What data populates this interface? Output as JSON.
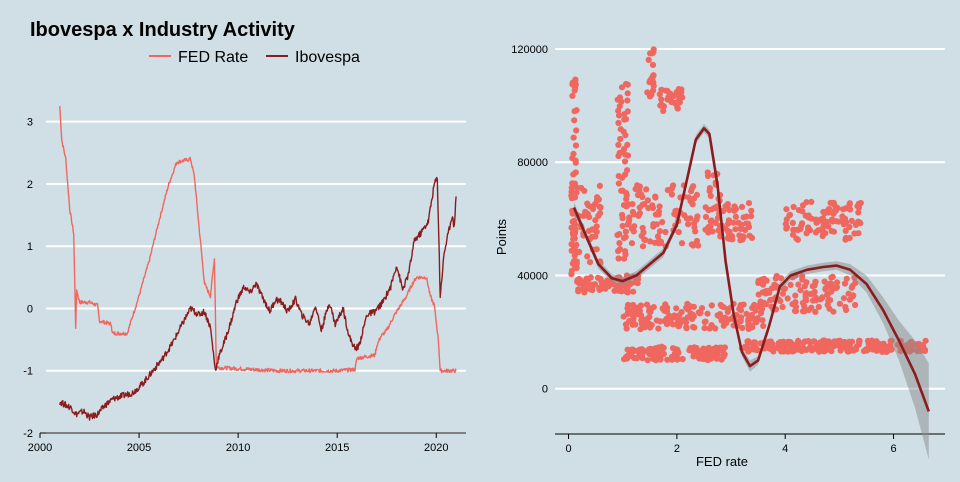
{
  "chart_data": [
    {
      "type": "line",
      "title": "Ibovespa x Industry Activity",
      "xlabel": "",
      "ylabel": "",
      "xlim": [
        2000,
        2021.5
      ],
      "ylim": [
        -2,
        3.3
      ],
      "x_ticks": [
        "2000",
        "2005",
        "2010",
        "2015",
        "2020"
      ],
      "y_ticks": [
        "-2",
        "-1",
        "0",
        "1",
        "2",
        "3"
      ],
      "grid": "horizontal",
      "legend": {
        "placement": "top",
        "entries": [
          "FED Rate",
          "Ibovespa"
        ]
      },
      "series": [
        {
          "name": "FED Rate",
          "color": "#f0675f",
          "points": [
            [
              2001.0,
              3.25
            ],
            [
              2001.1,
              2.7
            ],
            [
              2001.3,
              2.4
            ],
            [
              2001.5,
              1.6
            ],
            [
              2001.7,
              1.2
            ],
            [
              2001.8,
              -0.3
            ],
            [
              2001.85,
              0.3
            ],
            [
              2002.0,
              0.1
            ],
            [
              2002.5,
              0.1
            ],
            [
              2002.9,
              0.05
            ],
            [
              2003.0,
              -0.2
            ],
            [
              2003.6,
              -0.25
            ],
            [
              2003.65,
              -0.4
            ],
            [
              2004.4,
              -0.4
            ],
            [
              2004.5,
              -0.3
            ],
            [
              2004.9,
              0.1
            ],
            [
              2005.5,
              0.75
            ],
            [
              2006.0,
              1.4
            ],
            [
              2006.5,
              2.0
            ],
            [
              2006.9,
              2.35
            ],
            [
              2007.6,
              2.4
            ],
            [
              2007.8,
              2.1
            ],
            [
              2008.0,
              1.4
            ],
            [
              2008.3,
              0.4
            ],
            [
              2008.6,
              0.2
            ],
            [
              2008.8,
              0.8
            ],
            [
              2008.9,
              -0.9
            ],
            [
              2009.0,
              -0.95
            ],
            [
              2012.0,
              -1.0
            ],
            [
              2015.0,
              -1.0
            ],
            [
              2015.9,
              -0.98
            ],
            [
              2016.0,
              -0.8
            ],
            [
              2016.9,
              -0.75
            ],
            [
              2017.0,
              -0.6
            ],
            [
              2017.2,
              -0.45
            ],
            [
              2017.5,
              -0.35
            ],
            [
              2017.9,
              -0.1
            ],
            [
              2018.2,
              0.05
            ],
            [
              2018.5,
              0.2
            ],
            [
              2018.8,
              0.4
            ],
            [
              2019.0,
              0.5
            ],
            [
              2019.5,
              0.5
            ],
            [
              2019.7,
              0.2
            ],
            [
              2019.9,
              0.05
            ],
            [
              2020.1,
              -0.5
            ],
            [
              2020.2,
              -1.0
            ],
            [
              2021.0,
              -1.0
            ]
          ]
        },
        {
          "name": "Ibovespa",
          "color": "#8b1c1e",
          "points": [
            [
              2001.0,
              -1.5
            ],
            [
              2001.3,
              -1.55
            ],
            [
              2001.6,
              -1.6
            ],
            [
              2001.8,
              -1.7
            ],
            [
              2002.2,
              -1.65
            ],
            [
              2002.5,
              -1.75
            ],
            [
              2002.9,
              -1.7
            ],
            [
              2003.3,
              -1.55
            ],
            [
              2003.7,
              -1.45
            ],
            [
              2004.2,
              -1.4
            ],
            [
              2004.7,
              -1.35
            ],
            [
              2005.2,
              -1.2
            ],
            [
              2005.7,
              -1.0
            ],
            [
              2006.2,
              -0.8
            ],
            [
              2006.7,
              -0.55
            ],
            [
              2007.1,
              -0.3
            ],
            [
              2007.6,
              0.0
            ],
            [
              2008.0,
              -0.1
            ],
            [
              2008.3,
              -0.05
            ],
            [
              2008.6,
              -0.3
            ],
            [
              2008.85,
              -1.0
            ],
            [
              2009.0,
              -0.8
            ],
            [
              2009.4,
              -0.45
            ],
            [
              2009.7,
              -0.15
            ],
            [
              2009.9,
              0.1
            ],
            [
              2010.3,
              0.35
            ],
            [
              2010.6,
              0.25
            ],
            [
              2010.9,
              0.4
            ],
            [
              2011.2,
              0.2
            ],
            [
              2011.6,
              -0.05
            ],
            [
              2011.9,
              0.15
            ],
            [
              2012.2,
              0.1
            ],
            [
              2012.5,
              -0.05
            ],
            [
              2012.9,
              0.15
            ],
            [
              2013.2,
              -0.1
            ],
            [
              2013.6,
              -0.25
            ],
            [
              2013.9,
              0.05
            ],
            [
              2014.2,
              -0.35
            ],
            [
              2014.6,
              0.1
            ],
            [
              2014.9,
              -0.25
            ],
            [
              2015.3,
              0.0
            ],
            [
              2015.6,
              -0.45
            ],
            [
              2015.9,
              -0.65
            ],
            [
              2016.1,
              -0.6
            ],
            [
              2016.5,
              -0.1
            ],
            [
              2016.9,
              -0.05
            ],
            [
              2017.3,
              0.1
            ],
            [
              2017.7,
              0.35
            ],
            [
              2018.0,
              0.7
            ],
            [
              2018.3,
              0.3
            ],
            [
              2018.6,
              0.55
            ],
            [
              2018.9,
              1.1
            ],
            [
              2019.2,
              1.2
            ],
            [
              2019.6,
              1.4
            ],
            [
              2019.9,
              2.0
            ],
            [
              2020.05,
              2.1
            ],
            [
              2020.2,
              0.2
            ],
            [
              2020.4,
              0.9
            ],
            [
              2020.6,
              1.2
            ],
            [
              2020.8,
              1.5
            ],
            [
              2020.9,
              1.3
            ],
            [
              2021.0,
              1.8
            ]
          ]
        }
      ]
    },
    {
      "type": "scatter",
      "title": "",
      "xlabel": "FED rate",
      "ylabel": "Points",
      "xlim": [
        -0.25,
        6.95
      ],
      "ylim": [
        -16000,
        120000
      ],
      "x_ticks": [
        "0",
        "2",
        "4",
        "6"
      ],
      "y_ticks": [
        "0",
        "40000",
        "80000",
        "120000"
      ],
      "grid": "horizontal",
      "series": [
        {
          "name": "",
          "color": "#f0675f",
          "clusters": [
            {
              "x": [
                0.05,
                0.15
              ],
              "y": [
                40000,
                110000
              ]
            },
            {
              "x": [
                0.05,
                0.6
              ],
              "y": [
                35000,
                72000
              ]
            },
            {
              "x": [
                0.15,
                1.3
              ],
              "y": [
                34000,
                40000
              ]
            },
            {
              "x": [
                0.9,
                1.1
              ],
              "y": [
                45000,
                108000
              ]
            },
            {
              "x": [
                1.45,
                1.6
              ],
              "y": [
                102000,
                120000
              ]
            },
            {
              "x": [
                1.65,
                2.1
              ],
              "y": [
                98000,
                106000
              ]
            },
            {
              "x": [
                1.0,
                2.4
              ],
              "y": [
                50000,
                72000
              ]
            },
            {
              "x": [
                2.5,
                2.8
              ],
              "y": [
                55000,
                78000
              ]
            },
            {
              "x": [
                2.8,
                3.4
              ],
              "y": [
                52000,
                66000
              ]
            },
            {
              "x": [
                4.0,
                5.4
              ],
              "y": [
                52000,
                66000
              ]
            },
            {
              "x": [
                1.0,
                3.6
              ],
              "y": [
                21000,
                30000
              ]
            },
            {
              "x": [
                3.5,
                5.3
              ],
              "y": [
                27000,
                40000
              ]
            },
            {
              "x": [
                1.0,
                2.9
              ],
              "y": [
                10000,
                15000
              ]
            },
            {
              "x": [
                3.2,
                6.6
              ],
              "y": [
                13000,
                17000
              ]
            }
          ]
        },
        {
          "name": "",
          "type": "smooth",
          "color": "#8b1c1e",
          "points": [
            [
              0.1,
              64000
            ],
            [
              0.3,
              55000
            ],
            [
              0.55,
              44000
            ],
            [
              0.8,
              39000
            ],
            [
              1.0,
              38000
            ],
            [
              1.25,
              40000
            ],
            [
              1.5,
              44000
            ],
            [
              1.75,
              48000
            ],
            [
              2.0,
              58000
            ],
            [
              2.2,
              75000
            ],
            [
              2.35,
              88000
            ],
            [
              2.5,
              92000
            ],
            [
              2.6,
              90000
            ],
            [
              2.75,
              72000
            ],
            [
              2.9,
              45000
            ],
            [
              3.05,
              26000
            ],
            [
              3.2,
              13000
            ],
            [
              3.35,
              8000
            ],
            [
              3.5,
              10000
            ],
            [
              3.7,
              22000
            ],
            [
              3.9,
              36000
            ],
            [
              4.1,
              40000
            ],
            [
              4.4,
              42000
            ],
            [
              4.7,
              43000
            ],
            [
              4.95,
              43500
            ],
            [
              5.2,
              42000
            ],
            [
              5.5,
              37000
            ],
            [
              5.8,
              28000
            ],
            [
              6.1,
              17000
            ],
            [
              6.4,
              5000
            ],
            [
              6.65,
              -8000
            ]
          ],
          "band_half_width": [
            2000,
            1500,
            1500,
            1500,
            1500,
            1500,
            1500,
            1500,
            1500,
            1500,
            1500,
            1500,
            1500,
            1500,
            1500,
            1500,
            1500,
            2000,
            1500,
            1500,
            1500,
            1500,
            1500,
            1500,
            1500,
            2000,
            3000,
            4500,
            7000,
            12000,
            17000
          ]
        }
      ]
    }
  ]
}
